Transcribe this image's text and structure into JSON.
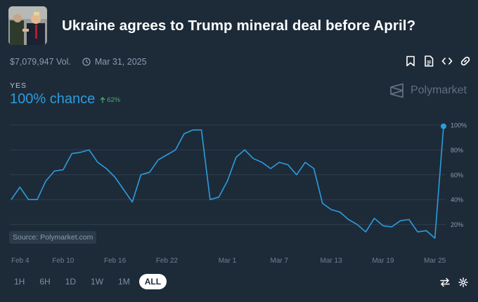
{
  "market": {
    "title": "Ukraine agrees to Trump mineral deal before April?",
    "volume": "$7,079,947 Vol.",
    "end_date": "Mar 31, 2025"
  },
  "outcome": {
    "label": "YES",
    "chance_text": "100% chance",
    "change_text": "62%",
    "change_direction": "up"
  },
  "brand": {
    "name": "Polymarket"
  },
  "source_label": "Source: Polymarket.com",
  "toolbar_icons": [
    "bookmark-icon",
    "document-icon",
    "embed-code-icon",
    "link-icon"
  ],
  "time_ranges": [
    "1H",
    "6H",
    "1D",
    "1W",
    "1M",
    "ALL"
  ],
  "active_range": "ALL",
  "colors": {
    "background": "#1d2b39",
    "accent": "#2d9cdb",
    "positive": "#3db468",
    "muted": "#8b9cae"
  },
  "chart_data": {
    "type": "line",
    "series": [
      {
        "x": [
          "Feb 4",
          "Feb 5",
          "Feb 6",
          "Feb 7",
          "Feb 8",
          "Feb 9",
          "Feb 10",
          "Feb 11",
          "Feb 12",
          "Feb 13",
          "Feb 14",
          "Feb 15",
          "Feb 16",
          "Feb 17",
          "Feb 18",
          "Feb 19",
          "Feb 20",
          "Feb 21",
          "Feb 22",
          "Feb 23",
          "Feb 24",
          "Feb 25",
          "Feb 26",
          "Feb 27",
          "Feb 28",
          "Mar 1",
          "Mar 2",
          "Mar 3",
          "Mar 4",
          "Mar 5",
          "Mar 6",
          "Mar 7",
          "Mar 8",
          "Mar 9",
          "Mar 10",
          "Mar 11",
          "Mar 12",
          "Mar 13",
          "Mar 14",
          "Mar 15",
          "Mar 16",
          "Mar 17",
          "Mar 18",
          "Mar 19",
          "Mar 20",
          "Mar 21",
          "Mar 22",
          "Mar 23",
          "Mar 24",
          "Mar 25",
          "Mar 26"
        ],
        "y": [
          40,
          50,
          40,
          40,
          55,
          63,
          64,
          77,
          78,
          80,
          70,
          65,
          58,
          48,
          38,
          60,
          62,
          72,
          76,
          80,
          93,
          96,
          96,
          40,
          42,
          55,
          74,
          80,
          73,
          70,
          65,
          70,
          68,
          60,
          70,
          65,
          37,
          32,
          30,
          24,
          20,
          14,
          25,
          19,
          18,
          23,
          24,
          14,
          15,
          9,
          99
        ]
      }
    ],
    "x_ticks": [
      "Feb 4",
      "Feb 10",
      "Feb 16",
      "Feb 22",
      "Mar 1",
      "Mar 7",
      "Mar 13",
      "Mar 19",
      "Mar 25"
    ],
    "y_ticks": [
      "20%",
      "40%",
      "60%",
      "80%",
      "100%"
    ],
    "ylim": [
      0,
      100
    ],
    "grid": true,
    "line_color": "#2d9cdb"
  }
}
